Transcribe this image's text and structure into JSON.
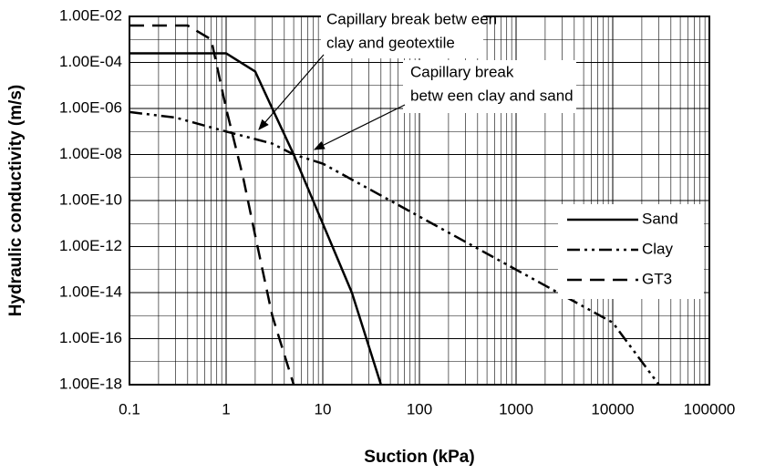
{
  "chart_data": {
    "type": "line",
    "log_x": true,
    "log_y": true,
    "grid": true,
    "legend": "right",
    "x_label": "Suction (kPa)",
    "y_label": "Hydraulic conductivity (m/s)",
    "xlim": [
      0.1,
      100000
    ],
    "ylim": [
      1e-18,
      0.01
    ],
    "xticks": [
      0.1,
      1,
      10,
      100,
      1000,
      10000,
      100000
    ],
    "yticks": [
      {
        "value": 1e-18,
        "label": "1.00E-18"
      },
      {
        "value": 1e-16,
        "label": "1.00E-16"
      },
      {
        "value": 1e-14,
        "label": "1.00E-14"
      },
      {
        "value": 1e-12,
        "label": "1.00E-12"
      },
      {
        "value": 1e-10,
        "label": "1.00E-10"
      },
      {
        "value": 1e-08,
        "label": "1.00E-08"
      },
      {
        "value": 1e-06,
        "label": "1.00E-06"
      },
      {
        "value": 0.0001,
        "label": "1.00E-04"
      },
      {
        "value": 0.01,
        "label": "1.00E-02"
      }
    ],
    "series": [
      {
        "name": "Sand",
        "color": "#000000",
        "dash": "solid",
        "x": [
          0.1,
          1,
          2,
          3,
          5,
          10,
          20,
          40
        ],
        "values": [
          0.00025,
          0.00025,
          4e-05,
          1e-06,
          1e-08,
          1e-11,
          1e-14,
          1e-18
        ]
      },
      {
        "name": "Clay",
        "color": "#000000",
        "dash": "dash-dot-dot",
        "x": [
          0.1,
          0.3,
          1,
          3,
          5,
          10,
          100,
          1000,
          10000,
          30000
        ],
        "values": [
          7e-07,
          4e-07,
          1e-07,
          3e-08,
          1e-08,
          4e-09,
          2e-11,
          1e-13,
          5e-16,
          1e-18
        ]
      },
      {
        "name": "GT3",
        "color": "#000000",
        "dash": "dashed",
        "x": [
          0.1,
          0.4,
          0.7,
          1,
          1.5,
          2,
          3,
          5
        ],
        "values": [
          0.004,
          0.004,
          0.001,
          1e-06,
          1e-09,
          3e-12,
          1e-15,
          1e-18
        ]
      }
    ],
    "annotations": [
      {
        "lines": [
          "Capillary break betw een",
          "clay and geotextile"
        ]
      },
      {
        "lines": [
          "Capillary break",
          "betw een clay and sand"
        ]
      }
    ]
  }
}
